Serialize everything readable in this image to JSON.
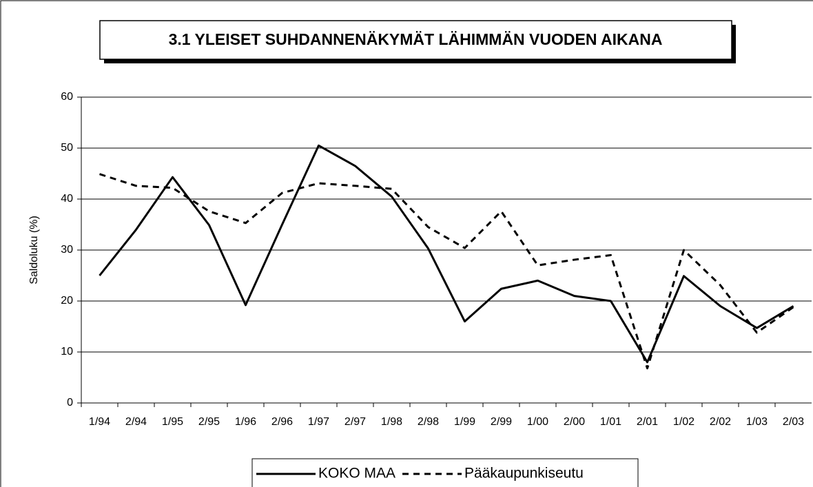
{
  "chart_data": {
    "type": "line",
    "title": "3.1 YLEISET SUHDANNENÄKYMÄT LÄHIMMÄN VUODEN AIKANA",
    "y_label": "Saldoluku (%)",
    "categories": [
      "1/94",
      "2/94",
      "1/95",
      "2/95",
      "1/96",
      "2/96",
      "1/97",
      "2/97",
      "1/98",
      "2/98",
      "1/99",
      "2/99",
      "1/00",
      "2/00",
      "1/01",
      "2/01",
      "1/02",
      "2/02",
      "1/03",
      "2/03"
    ],
    "series": [
      {
        "name": "KOKO MAA",
        "color": "#000000",
        "dash": false,
        "values": [
          25,
          34,
          44.3,
          34.9,
          19.2,
          35,
          50.5,
          46.5,
          40.5,
          30.3,
          16,
          22.4,
          24,
          21,
          20,
          8,
          24.9,
          19,
          14.7,
          19
        ]
      },
      {
        "name": "Pääkaupunkiseutu",
        "color": "#000000",
        "dash": true,
        "values": [
          44.9,
          42.6,
          42.2,
          37.6,
          35.3,
          41.2,
          43.1,
          42.6,
          42,
          34.5,
          30.4,
          37.6,
          27,
          28.1,
          29,
          6.8,
          30,
          23.1,
          13.8,
          18.8
        ]
      }
    ],
    "ylim": [
      0,
      60
    ],
    "yticks": [
      0,
      10,
      20,
      30,
      40,
      50,
      60
    ],
    "grid": true,
    "legend": "bottom"
  }
}
